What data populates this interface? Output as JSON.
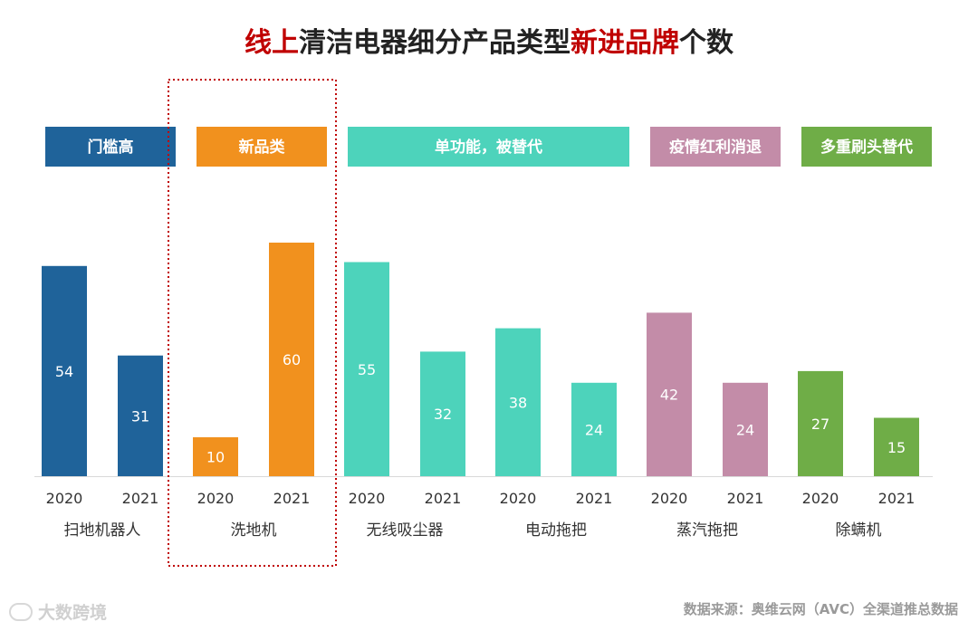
{
  "chart_data": {
    "type": "bar",
    "title_parts": [
      "线上",
      "清洁电器细分产品类型",
      "新进品牌",
      "个数"
    ],
    "groups": [
      {
        "name": "扫地机器人",
        "color": "#1f639a",
        "values": [
          {
            "year": "2020",
            "value": 54
          },
          {
            "year": "2021",
            "value": 31
          }
        ]
      },
      {
        "name": "洗地机",
        "color": "#f1911e",
        "values": [
          {
            "year": "2020",
            "value": 10
          },
          {
            "year": "2021",
            "value": 60
          }
        ]
      },
      {
        "name": "无线吸尘器",
        "color": "#4dd3bb",
        "values": [
          {
            "year": "2020",
            "value": 55
          },
          {
            "year": "2021",
            "value": 32
          }
        ]
      },
      {
        "name": "电动拖把",
        "color": "#4dd3bb",
        "values": [
          {
            "year": "2020",
            "value": 38
          },
          {
            "year": "2021",
            "value": 24
          }
        ]
      },
      {
        "name": "蒸汽拖把",
        "color": "#c38ca8",
        "values": [
          {
            "year": "2020",
            "value": 42
          },
          {
            "year": "2021",
            "value": 24
          }
        ]
      },
      {
        "name": "除螨机",
        "color": "#6fad47",
        "values": [
          {
            "year": "2020",
            "value": 27
          },
          {
            "year": "2021",
            "value": 15
          }
        ]
      }
    ],
    "annotations": [
      {
        "label": "门槛高",
        "color": "#1f639a",
        "groups": [
          0
        ]
      },
      {
        "label": "新品类",
        "color": "#f1911e",
        "groups": [
          1
        ]
      },
      {
        "label": "单功能，被替代",
        "color": "#4dd3bb",
        "groups": [
          2,
          3
        ]
      },
      {
        "label": "疫情红利消退",
        "color": "#c38ca8",
        "groups": [
          4
        ]
      },
      {
        "label": "多重刷头替代",
        "color": "#6fad47",
        "groups": [
          5
        ]
      }
    ],
    "highlight_group": 1,
    "ylim": [
      0,
      60
    ]
  },
  "source": "数据来源：奥维云网（AVC）全渠道推总数据",
  "watermark": "大数跨境"
}
